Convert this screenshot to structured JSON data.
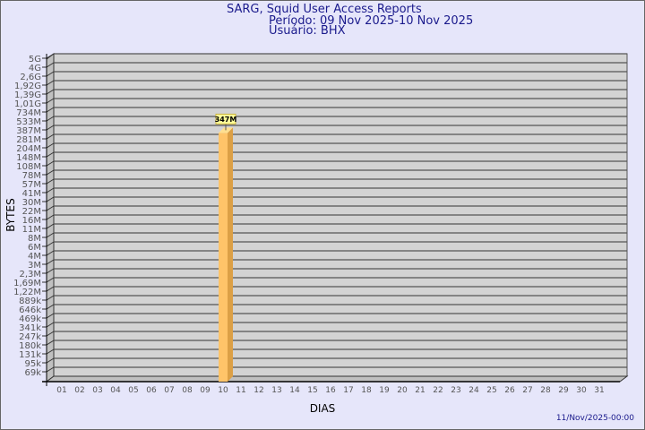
{
  "chart_data": {
    "type": "bar",
    "title": "SARG, Squid User Access Reports",
    "subtitle_period": "Período: 09 Nov 2025-10 Nov 2025",
    "subtitle_user": "Usuário: BHX",
    "xlabel": "DIAS",
    "ylabel": "BYTES",
    "timestamp": "11/Nov/2025-00:00",
    "y_scale": "log",
    "grid": true,
    "categories": [
      "01",
      "02",
      "03",
      "04",
      "05",
      "06",
      "07",
      "08",
      "09",
      "10",
      "11",
      "12",
      "13",
      "14",
      "15",
      "16",
      "17",
      "18",
      "19",
      "20",
      "21",
      "22",
      "23",
      "24",
      "25",
      "26",
      "27",
      "28",
      "29",
      "30",
      "31"
    ],
    "values": [
      0,
      0,
      0,
      0,
      0,
      0,
      0,
      0,
      0,
      347000000,
      0,
      0,
      0,
      0,
      0,
      0,
      0,
      0,
      0,
      0,
      0,
      0,
      0,
      0,
      0,
      0,
      0,
      0,
      0,
      0,
      0
    ],
    "data_labels": {
      "10": "347M"
    },
    "y_ticks": [
      "5G",
      "4G",
      "2,6G",
      "1,92G",
      "1,39G",
      "1,01G",
      "734M",
      "533M",
      "387M",
      "281M",
      "204M",
      "148M",
      "108M",
      "78M",
      "57M",
      "41M",
      "30M",
      "22M",
      "16M",
      "11M",
      "8M",
      "6M",
      "4M",
      "3M",
      "2,3M",
      "1,69M",
      "1,22M",
      "889k",
      "646k",
      "469k",
      "341k",
      "247k",
      "180k",
      "131k",
      "95k",
      "69k"
    ],
    "y_tick_values": [
      5000000000,
      4000000000,
      2600000000,
      1920000000,
      1390000000,
      1010000000,
      734000000,
      533000000,
      387000000,
      281000000,
      204000000,
      148000000,
      108000000,
      78000000,
      57000000,
      41000000,
      30000000,
      22000000,
      16000000,
      11000000,
      8000000,
      6000000,
      4000000,
      3000000,
      2300000,
      1690000,
      1220000,
      889000,
      646000,
      469000,
      341000,
      247000,
      180000,
      131000,
      95000,
      69000
    ],
    "colors": {
      "bar_front": "#ffc469",
      "bar_side": "#dca046",
      "bar_top": "#ffe090",
      "wall": "#d3d3d3",
      "side_wall": "#c0c0c0",
      "title": "#1a1a8c",
      "label_bg": "#ffff99"
    }
  }
}
